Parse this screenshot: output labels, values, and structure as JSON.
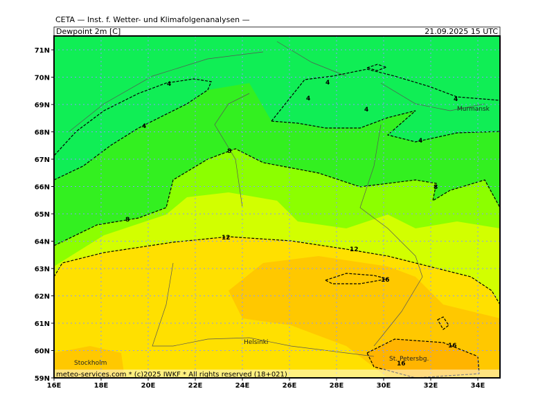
{
  "header": {
    "title": "CETA — Inst. f. Wetter- und Klimafolgenanalysen —",
    "field": "Dewpoint 2m [C]",
    "valid": "21.09.2025 15 UTC"
  },
  "map": {
    "lat_labels": [
      "71N",
      "70N",
      "69N",
      "68N",
      "67N",
      "66N",
      "65N",
      "64N",
      "63N",
      "62N",
      "61N",
      "60N",
      "59N"
    ],
    "lon_labels": [
      "16E",
      "18E",
      "20E",
      "22E",
      "24E",
      "26E",
      "28E",
      "30E",
      "32E",
      "34E"
    ],
    "cities": [
      "Murmansk",
      "Helsinki",
      "Stockholm",
      "St. Petersbg."
    ],
    "contour_labels": [
      "4",
      "4",
      "4",
      "4",
      "4",
      "4",
      "4",
      "8",
      "8",
      "8",
      "12",
      "12",
      "16",
      "16",
      "16"
    ]
  },
  "footer": "meteo-services.com * (c)2025 IWKF * All rights reserved (18+021)"
}
